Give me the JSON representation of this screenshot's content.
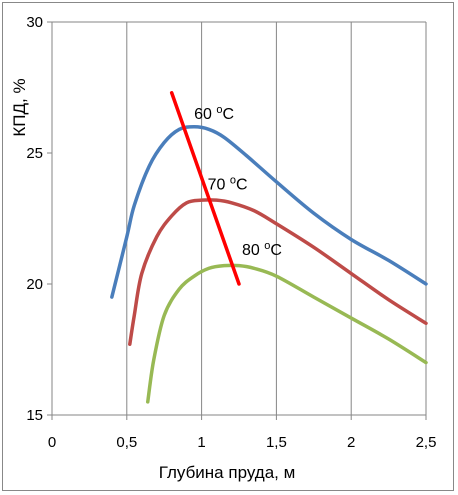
{
  "chart_data": {
    "type": "line",
    "xlabel": "Глубина пруда, м",
    "ylabel": "КПД, %",
    "xlim": [
      0,
      2.5
    ],
    "ylim": [
      15,
      30
    ],
    "xticks": [
      "0",
      "0,5",
      "1",
      "1,5",
      "2",
      "2,5"
    ],
    "xtick_values": [
      0,
      0.5,
      1,
      1.5,
      2,
      2.5
    ],
    "yticks": [
      "15",
      "20",
      "25",
      "30"
    ],
    "ytick_values": [
      15,
      20,
      25,
      30
    ],
    "grid": "vertical",
    "series": [
      {
        "color": "#4a7ebb",
        "x": [
          0.4,
          0.5,
          0.55,
          0.65,
          0.75,
          0.85,
          0.95,
          1.05,
          1.15,
          1.3,
          1.5,
          1.75,
          2.0,
          2.25,
          2.5
        ],
        "y": [
          19.5,
          21.8,
          23.0,
          24.5,
          25.4,
          25.9,
          26.0,
          25.9,
          25.6,
          24.9,
          23.9,
          22.7,
          21.7,
          20.9,
          20.0
        ]
      },
      {
        "color": "#be4b48",
        "x": [
          0.52,
          0.55,
          0.6,
          0.7,
          0.8,
          0.9,
          1.0,
          1.1,
          1.2,
          1.35,
          1.5,
          1.75,
          2.0,
          2.25,
          2.5
        ],
        "y": [
          17.7,
          18.8,
          20.4,
          21.8,
          22.6,
          23.1,
          23.2,
          23.2,
          23.1,
          22.8,
          22.3,
          21.4,
          20.4,
          19.4,
          18.5
        ]
      },
      {
        "color": "#98b954",
        "x": [
          0.64,
          0.68,
          0.75,
          0.85,
          0.95,
          1.05,
          1.15,
          1.25,
          1.35,
          1.5,
          1.75,
          2.0,
          2.25,
          2.5
        ],
        "y": [
          15.5,
          17.1,
          18.8,
          19.8,
          20.3,
          20.6,
          20.7,
          20.7,
          20.6,
          20.3,
          19.5,
          18.7,
          17.9,
          17.0
        ]
      },
      {
        "color": "#ff0000",
        "x": [
          0.8,
          1.25
        ],
        "y": [
          27.3,
          20.0
        ]
      }
    ],
    "annotations": [
      {
        "text": "60 ",
        "sup": "o",
        "unit": "C",
        "x": 0.95,
        "y": 26.3
      },
      {
        "text": "70 ",
        "sup": "o",
        "unit": "C",
        "x": 1.04,
        "y": 23.6
      },
      {
        "text": "80 ",
        "sup": "o",
        "unit": "C",
        "x": 1.27,
        "y": 21.1
      }
    ]
  }
}
